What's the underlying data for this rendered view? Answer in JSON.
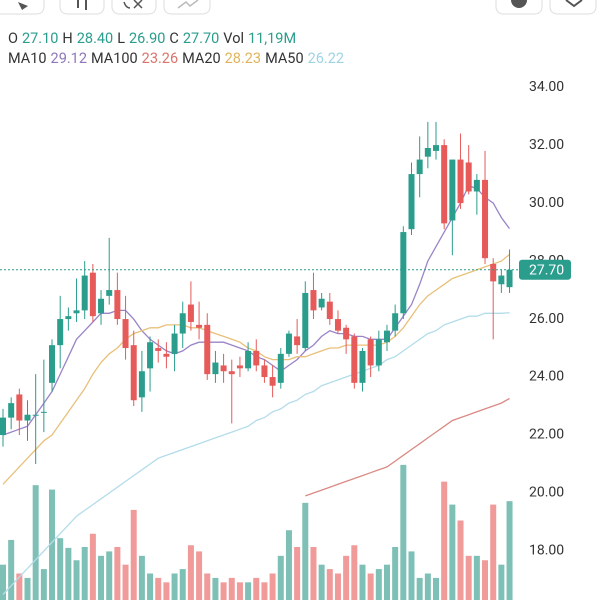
{
  "legend": {
    "ohlc": [
      {
        "label": "O",
        "value": "27.10"
      },
      {
        "label": "H",
        "value": "28.40"
      },
      {
        "label": "L",
        "value": "26.90"
      },
      {
        "label": "C",
        "value": "27.70"
      },
      {
        "label": "Vol",
        "value": "11,19M"
      }
    ],
    "ma": [
      {
        "label": "MA10",
        "value": "29.12",
        "color": "#8e78b8"
      },
      {
        "label": "MA100",
        "value": "23.26",
        "color": "#d9756d"
      },
      {
        "label": "MA20",
        "value": "28.23",
        "color": "#e0b45c"
      },
      {
        "label": "MA50",
        "value": "26.22",
        "color": "#9fd3e6"
      }
    ]
  },
  "chart_data": {
    "type": "candlestick",
    "up_color": "#2a9d8c",
    "down_color": "#e65a5a",
    "volume_up_color": "#7ec0b6",
    "volume_down_color": "#f09a9a",
    "ylim": [
      16.31,
      34.59
    ],
    "yticks": [
      {
        "value": 34,
        "label": "34.00"
      },
      {
        "value": 32,
        "label": "32.00"
      },
      {
        "value": 30,
        "label": "30.00"
      },
      {
        "value": 28,
        "label": "28.00"
      },
      {
        "value": 26,
        "label": "26.00"
      },
      {
        "value": 24,
        "label": "24.00"
      },
      {
        "value": 22,
        "label": "22.00"
      },
      {
        "value": 20,
        "label": "20.00"
      },
      {
        "value": 18,
        "label": "18.00"
      }
    ],
    "y2lim": [
      0,
      60
    ],
    "last_price": {
      "value": 27.7,
      "label": "27.70"
    },
    "open": [
      22.0,
      22.6,
      23.4,
      22.5,
      22.7,
      22.8,
      23.8,
      25.1,
      26.0,
      26.2,
      26.3,
      27.6,
      26.2,
      26.8,
      27.0,
      26.0,
      25.1,
      23.3,
      24.3,
      25.0,
      24.8,
      24.8,
      25.5,
      26.5,
      25.8,
      25.8,
      24.1,
      24.4,
      24.2,
      24.4,
      24.3,
      24.9,
      24.4,
      24.0,
      23.8,
      24.8,
      25.4,
      25.0,
      27.0,
      26.4,
      26.6,
      26.0,
      25.7,
      25.4,
      23.8,
      25.3,
      24.4,
      25.2,
      25.6,
      26.2,
      29.1,
      31.0,
      31.6,
      31.8,
      32.0,
      29.4,
      31.5,
      31.4,
      30.4,
      30.8,
      27.9,
      27.2,
      27.1
    ],
    "high": [
      22.9,
      23.3,
      23.6,
      23.2,
      24.1,
      24.6,
      25.3,
      26.8,
      26.4,
      27.4,
      28.0,
      27.9,
      27.0,
      28.8,
      27.6,
      26.8,
      25.6,
      24.9,
      25.4,
      25.3,
      25.2,
      25.8,
      26.6,
      27.3,
      26.6,
      26.2,
      24.9,
      24.8,
      24.6,
      24.7,
      25.2,
      25.3,
      24.6,
      24.4,
      25.0,
      25.6,
      26.0,
      27.3,
      27.6,
      26.9,
      26.9,
      26.3,
      25.8,
      25.5,
      25.0,
      25.4,
      25.6,
      25.8,
      26.5,
      29.2,
      31.4,
      32.3,
      32.8,
      32.8,
      32.2,
      31.5,
      32.4,
      32.0,
      31.0,
      31.8,
      28.1,
      27.7,
      28.4
    ],
    "low": [
      21.6,
      22.2,
      22.0,
      21.8,
      21.0,
      22.1,
      23.5,
      24.3,
      25.6,
      25.9,
      26.0,
      25.9,
      25.8,
      26.5,
      25.8,
      24.6,
      23.0,
      22.8,
      23.5,
      24.5,
      24.3,
      24.2,
      25.0,
      25.6,
      25.3,
      23.9,
      23.8,
      23.8,
      22.4,
      24.0,
      24.2,
      24.2,
      23.8,
      23.3,
      23.6,
      24.7,
      24.8,
      24.9,
      26.0,
      26.3,
      25.8,
      25.5,
      24.8,
      23.6,
      23.5,
      24.0,
      24.2,
      24.9,
      25.4,
      26.0,
      28.9,
      30.2,
      31.2,
      31.5,
      29.1,
      28.2,
      29.8,
      30.3,
      29.6,
      27.9,
      25.3,
      26.9,
      26.9
    ],
    "close": [
      22.6,
      23.1,
      22.5,
      22.7,
      22.7,
      22.8,
      25.1,
      26.0,
      26.1,
      26.3,
      27.5,
      26.1,
      26.7,
      27.0,
      26.0,
      25.0,
      23.2,
      24.2,
      25.2,
      24.9,
      24.7,
      25.5,
      26.2,
      25.9,
      25.7,
      24.1,
      24.5,
      24.2,
      24.1,
      24.3,
      24.9,
      24.4,
      24.0,
      23.7,
      24.8,
      25.5,
      25.1,
      26.9,
      26.3,
      26.7,
      26.0,
      25.6,
      25.3,
      23.8,
      24.9,
      24.4,
      25.3,
      25.6,
      26.2,
      29.0,
      31.0,
      31.5,
      31.9,
      32.0,
      29.3,
      31.5,
      30.0,
      30.4,
      30.8,
      28.1,
      27.3,
      27.5,
      27.7
    ],
    "volume": [
      4.0,
      6.8,
      3.0,
      2.5,
      13.0,
      3.5,
      12.5,
      7.0,
      5.9,
      4.5,
      6.0,
      7.5,
      5.0,
      5.5,
      6.0,
      4.0,
      10.2,
      5.0,
      3.0,
      2.5,
      2.0,
      3.0,
      3.5,
      6.2,
      5.5,
      3.0,
      2.5,
      2.0,
      2.5,
      2.0,
      2.0,
      2.5,
      2.0,
      3.0,
      5.0,
      7.9,
      6.0,
      11.0,
      6.0,
      4.0,
      3.5,
      3.0,
      5.0,
      6.2,
      4.0,
      3.0,
      3.5,
      4.0,
      6.0,
      15.3,
      5.5,
      2.5,
      3.0,
      2.5,
      13.4,
      10.8,
      9.0,
      5.0,
      5.0,
      4.5,
      10.8,
      4.0,
      11.19
    ],
    "series": [
      {
        "name": "MA10",
        "color": "#9a84c6",
        "values": [
          22.0,
          22.1,
          22.2,
          22.3,
          22.7,
          23.1,
          23.5,
          24.1,
          24.7,
          25.3,
          25.6,
          25.9,
          26.2,
          26.2,
          26.3,
          26.3,
          26.0,
          25.6,
          25.3,
          25.1,
          24.9,
          24.8,
          24.9,
          25.1,
          25.2,
          25.2,
          25.2,
          25.2,
          25.1,
          25.0,
          24.9,
          24.7,
          24.6,
          24.4,
          24.2,
          24.4,
          24.6,
          24.9,
          25.1,
          25.4,
          25.6,
          25.5,
          25.5,
          25.4,
          25.4,
          25.3,
          25.3,
          25.3,
          25.7,
          26.1,
          26.5,
          27.2,
          28.0,
          28.5,
          29.0,
          29.5,
          30.0,
          30.6,
          30.5,
          30.2,
          30.0,
          29.5,
          29.12
        ]
      },
      {
        "name": "MA20",
        "color": "#e8c07a",
        "values": [
          20.3,
          20.6,
          20.9,
          21.2,
          21.5,
          21.8,
          22.0,
          22.4,
          22.8,
          23.2,
          23.6,
          24.1,
          24.5,
          24.8,
          25.0,
          25.3,
          25.5,
          25.6,
          25.7,
          25.7,
          25.8,
          25.8,
          25.8,
          25.7,
          25.7,
          25.6,
          25.5,
          25.4,
          25.3,
          25.2,
          25.0,
          24.9,
          24.7,
          24.6,
          24.6,
          24.6,
          24.7,
          24.7,
          24.8,
          24.9,
          25.0,
          25.0,
          25.1,
          25.1,
          25.1,
          25.1,
          25.1,
          25.2,
          25.4,
          25.7,
          26.1,
          26.5,
          26.8,
          27.0,
          27.2,
          27.4,
          27.5,
          27.6,
          27.7,
          27.8,
          27.9,
          28.0,
          28.23
        ]
      },
      {
        "name": "MA50",
        "color": "#b3dcea",
        "values": [
          16.5,
          16.8,
          17.1,
          17.4,
          17.7,
          18.0,
          18.3,
          18.6,
          18.9,
          19.2,
          19.4,
          19.6,
          19.8,
          20.0,
          20.2,
          20.4,
          20.6,
          20.8,
          21.0,
          21.2,
          21.3,
          21.4,
          21.5,
          21.6,
          21.7,
          21.8,
          21.9,
          22.0,
          22.1,
          22.2,
          22.3,
          22.5,
          22.6,
          22.8,
          22.9,
          23.1,
          23.2,
          23.4,
          23.5,
          23.7,
          23.8,
          23.9,
          24.0,
          24.1,
          24.2,
          24.3,
          24.4,
          24.6,
          24.7,
          24.9,
          25.1,
          25.3,
          25.5,
          25.6,
          25.8,
          25.9,
          26.0,
          26.1,
          26.1,
          26.2,
          26.2,
          26.2,
          26.22
        ]
      },
      {
        "name": "MA100",
        "color": "#d98a84",
        "values": [
          null,
          null,
          null,
          null,
          null,
          null,
          null,
          null,
          null,
          null,
          null,
          null,
          null,
          null,
          null,
          null,
          null,
          null,
          null,
          null,
          null,
          null,
          null,
          null,
          null,
          null,
          null,
          null,
          null,
          null,
          null,
          null,
          null,
          null,
          null,
          null,
          null,
          19.9,
          20.0,
          20.1,
          20.2,
          20.3,
          20.4,
          20.5,
          20.6,
          20.7,
          20.8,
          20.9,
          21.1,
          21.3,
          21.5,
          21.7,
          21.9,
          22.1,
          22.3,
          22.5,
          22.6,
          22.7,
          22.8,
          22.9,
          23.0,
          23.1,
          23.26
        ]
      }
    ]
  }
}
